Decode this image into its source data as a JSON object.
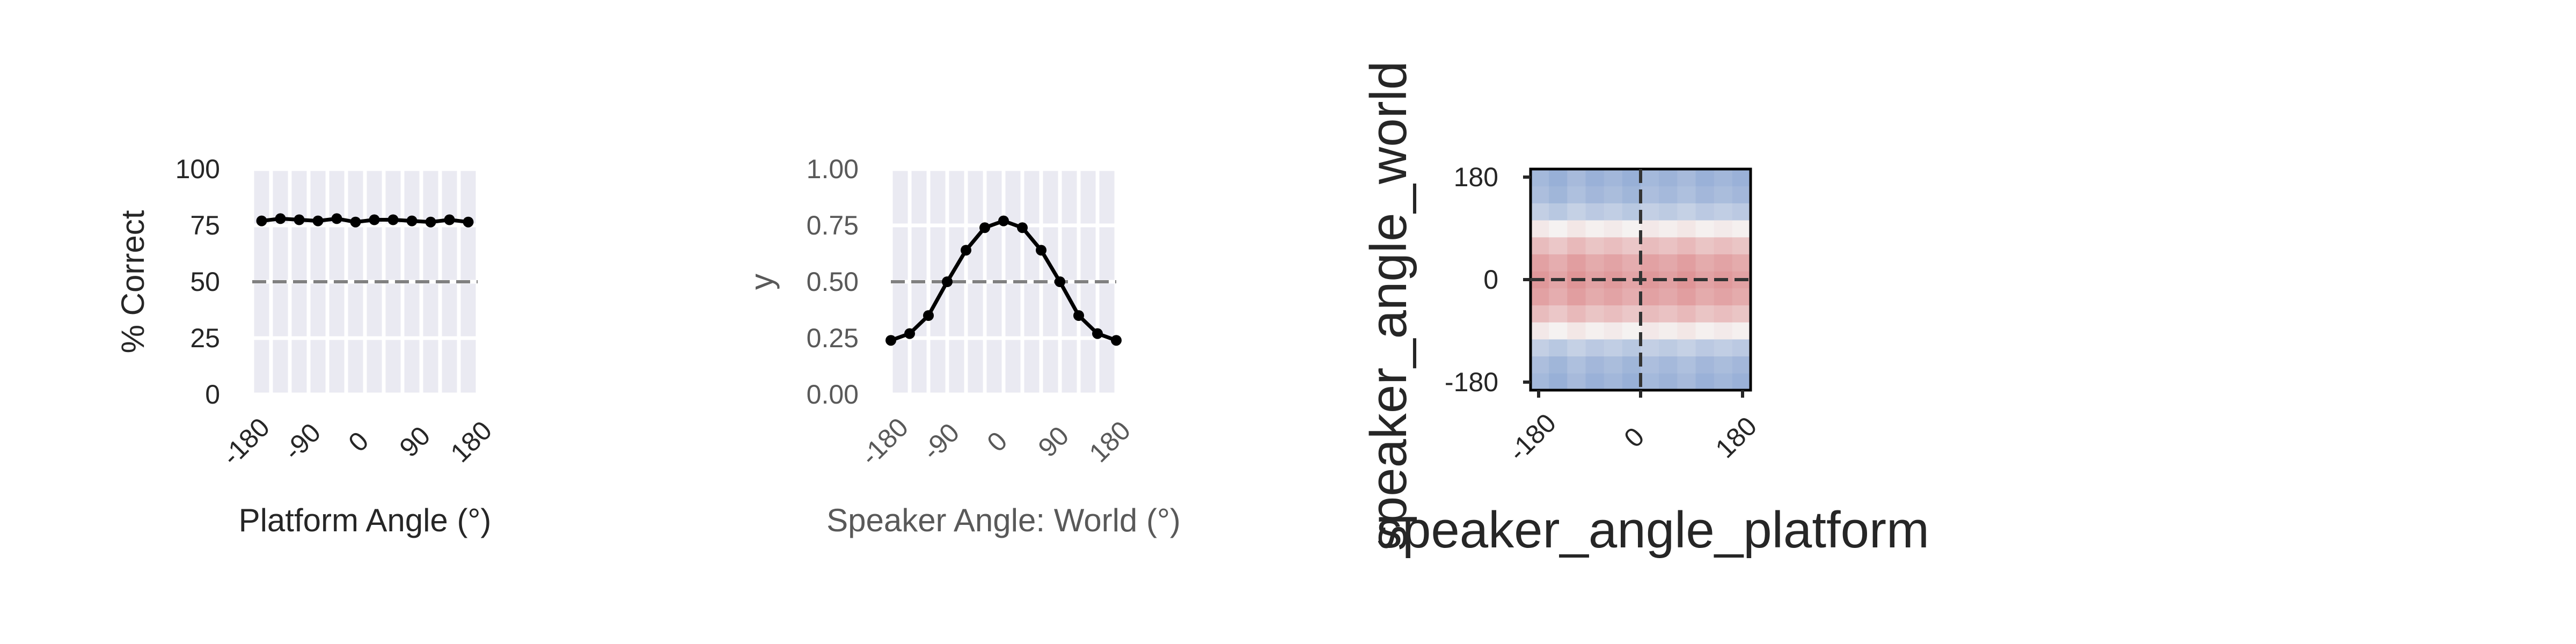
{
  "chart_data": [
    {
      "type": "line",
      "title": "",
      "xlabel": "Platform Angle (°)",
      "ylabel": "% Correct",
      "x": [
        -165,
        -135,
        -105,
        -75,
        -45,
        -15,
        15,
        45,
        75,
        105,
        135,
        165
      ],
      "series": [
        {
          "values": [
            77,
            78,
            77.5,
            77,
            78,
            76.5,
            77.5,
            77.5,
            77,
            76.5,
            77.5,
            76.5
          ]
        }
      ],
      "reference_line": 50,
      "xlim": [
        -180,
        180
      ],
      "ylim": [
        0,
        100
      ],
      "xticks": [
        "-180",
        "-90",
        "0",
        "90",
        "180"
      ],
      "yticks": [
        "0",
        "25",
        "50",
        "75",
        "100"
      ],
      "grid": true
    },
    {
      "type": "line",
      "title": "",
      "xlabel": "Speaker Angle: World (°)",
      "ylabel": "y",
      "x": [
        -180,
        -150,
        -120,
        -90,
        -60,
        -30,
        0,
        30,
        60,
        90,
        120,
        150,
        180
      ],
      "series": [
        {
          "values": [
            0.24,
            0.27,
            0.35,
            0.5,
            0.64,
            0.74,
            0.77,
            0.74,
            0.64,
            0.5,
            0.35,
            0.27,
            0.24
          ]
        }
      ],
      "reference_line": 0.5,
      "xlim": [
        -180,
        180
      ],
      "ylim": [
        0,
        1
      ],
      "xticks": [
        "-180",
        "-90",
        "0",
        "90",
        "180"
      ],
      "yticks": [
        "0.00",
        "0.25",
        "0.50",
        "0.75",
        "1.00"
      ],
      "grid": true
    },
    {
      "type": "heatmap",
      "title": "",
      "xlabel": "speaker_angle_platform",
      "ylabel": "speaker_angle_world",
      "xticks": [
        "-180",
        "0",
        "180"
      ],
      "yticks": [
        "-180",
        "0",
        "180"
      ],
      "xlim": [
        -180,
        180
      ],
      "ylim": [
        -180,
        180
      ],
      "colormap": "coolwarm",
      "columns": 12,
      "rows": [
        -0.55,
        -0.5,
        -0.35,
        0.05,
        0.3,
        0.45,
        0.5,
        0.45,
        0.3,
        0.05,
        -0.35,
        -0.5,
        -0.55
      ],
      "column_variation": [
        0.02,
        -0.03,
        0.03,
        -0.02,
        0.01,
        -0.03,
        0.02,
        -0.01,
        0.03,
        -0.02,
        0.01,
        -0.02
      ],
      "reference_lines": {
        "x": 0,
        "y": 0
      }
    }
  ]
}
